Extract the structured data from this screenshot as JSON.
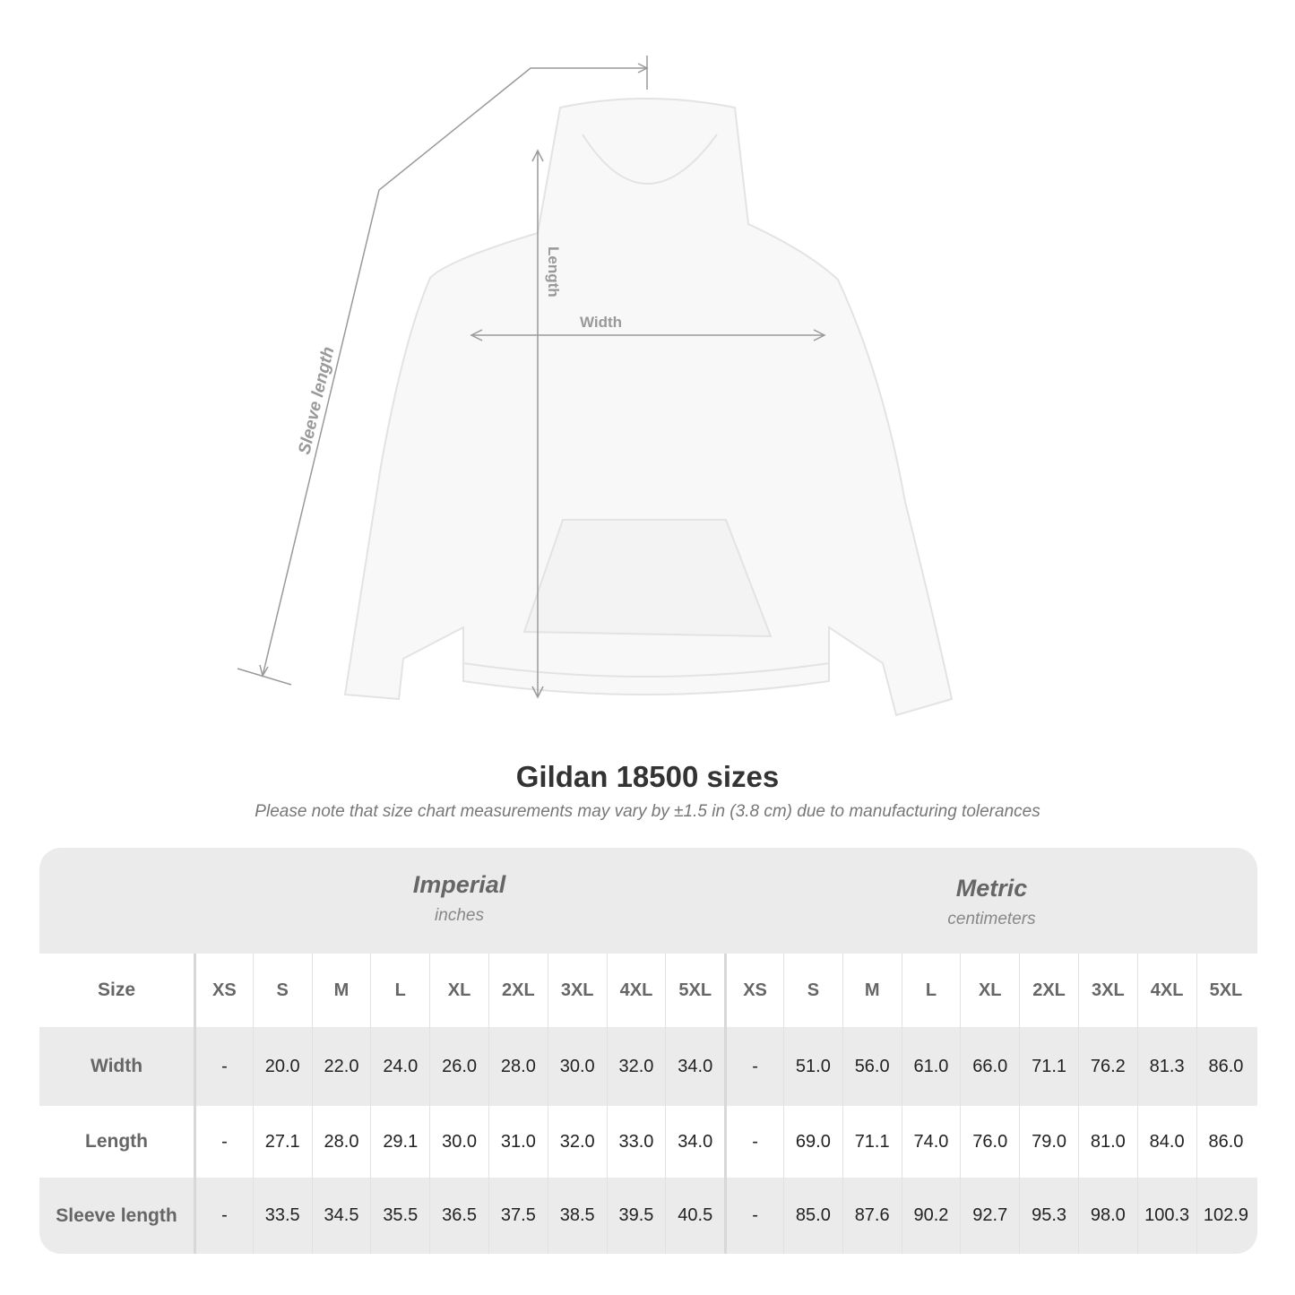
{
  "diagram": {
    "length_label": "Length",
    "width_label": "Width",
    "sleeve_label": "Sleeve length"
  },
  "title": "Gildan 18500 sizes",
  "note": "Please note that size chart measurements may vary by ±1.5 in (3.8 cm) due to manufacturing tolerances",
  "imperial": {
    "heading": "Imperial",
    "unit": "inches"
  },
  "metric": {
    "heading": "Metric",
    "unit": "centimeters"
  },
  "size_label": "Size",
  "sizes": [
    "XS",
    "S",
    "M",
    "L",
    "XL",
    "2XL",
    "3XL",
    "4XL",
    "5XL"
  ],
  "rows": [
    {
      "label": "Width",
      "imperial": [
        "-",
        "20.0",
        "22.0",
        "24.0",
        "26.0",
        "28.0",
        "30.0",
        "32.0",
        "34.0"
      ],
      "metric": [
        "-",
        "51.0",
        "56.0",
        "61.0",
        "66.0",
        "71.1",
        "76.2",
        "81.3",
        "86.0"
      ]
    },
    {
      "label": "Length",
      "imperial": [
        "-",
        "27.1",
        "28.0",
        "29.1",
        "30.0",
        "31.0",
        "32.0",
        "33.0",
        "34.0"
      ],
      "metric": [
        "-",
        "69.0",
        "71.1",
        "74.0",
        "76.0",
        "79.0",
        "81.0",
        "84.0",
        "86.0"
      ]
    },
    {
      "label": "Sleeve length",
      "imperial": [
        "-",
        "33.5",
        "34.5",
        "35.5",
        "36.5",
        "37.5",
        "38.5",
        "39.5",
        "40.5"
      ],
      "metric": [
        "-",
        "85.0",
        "87.6",
        "90.2",
        "92.7",
        "95.3",
        "98.0",
        "100.3",
        "102.9"
      ]
    }
  ],
  "colors": {
    "table_bg": "#ebebeb",
    "header_text": "#666666",
    "measure_line": "#999999"
  }
}
